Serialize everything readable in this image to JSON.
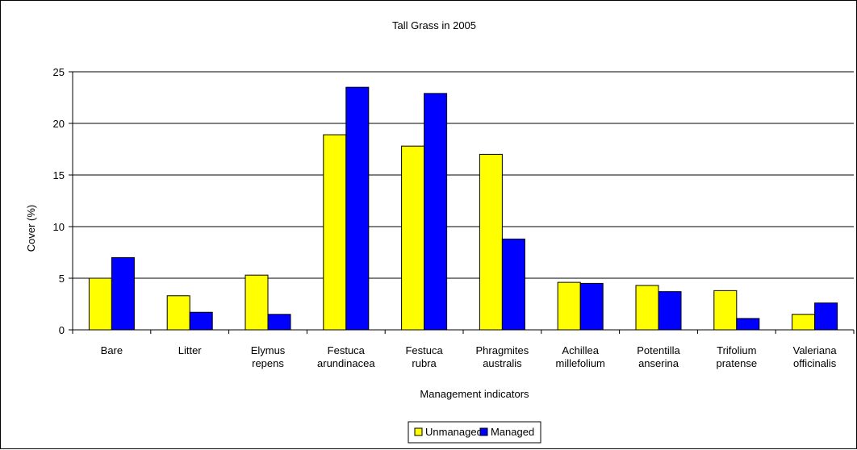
{
  "chart_data": {
    "type": "bar",
    "title": "Tall Grass in 2005",
    "xlabel": "Management indicators",
    "ylabel": "Cover (%)",
    "ylim": [
      0,
      25
    ],
    "yticks": [
      0,
      5,
      10,
      15,
      20,
      25
    ],
    "grid": true,
    "legend_position": "bottom",
    "categories": [
      [
        "Bare"
      ],
      [
        "Litter"
      ],
      [
        "Elymus",
        "repens"
      ],
      [
        "Festuca",
        "arundinacea"
      ],
      [
        "Festuca",
        "rubra"
      ],
      [
        "Phragmites",
        "australis"
      ],
      [
        "Achillea",
        "millefolium"
      ],
      [
        "Potentilla",
        "anserina"
      ],
      [
        "Trifolium",
        "pratense"
      ],
      [
        "Valeriana",
        "officinalis"
      ]
    ],
    "series": [
      {
        "name": "Unmanaged",
        "color": "#ffff00",
        "values": [
          5.0,
          3.3,
          5.3,
          18.9,
          17.8,
          17.0,
          4.6,
          4.3,
          3.8,
          1.5
        ]
      },
      {
        "name": "Managed",
        "color": "#0000ff",
        "values": [
          7.0,
          1.7,
          1.5,
          23.5,
          22.9,
          8.8,
          4.5,
          3.7,
          1.1,
          2.6
        ]
      }
    ]
  }
}
